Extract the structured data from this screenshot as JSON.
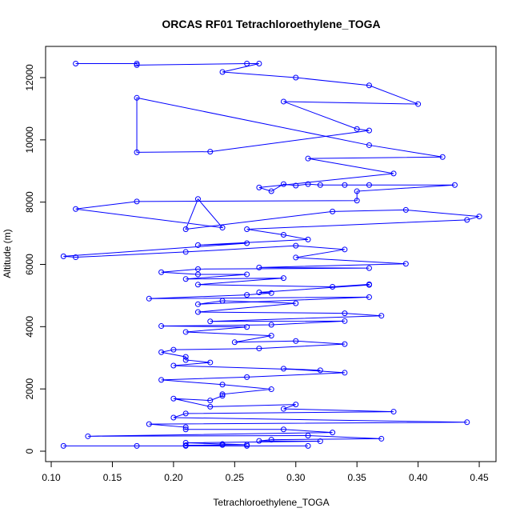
{
  "chart_data": {
    "type": "line",
    "title": "ORCAS RF01 Tetrachloroethylene_TOGA",
    "x_label": "Tetrachloroethylene_TOGA",
    "y_label": "Altitude (m)",
    "color": "#0000ff",
    "marker": "circle",
    "x": [
      0.12,
      0.17,
      0.17,
      0.26,
      0.27,
      0.24,
      0.3,
      0.36,
      0.4,
      0.29,
      0.35,
      0.36,
      0.23,
      0.17,
      0.17,
      0.36,
      0.42,
      0.31,
      0.38,
      0.27,
      0.28,
      0.29,
      0.3,
      0.31,
      0.32,
      0.34,
      0.36,
      0.43,
      0.35,
      0.35,
      0.17,
      0.12,
      0.24,
      0.22,
      0.21,
      0.33,
      0.39,
      0.45,
      0.44,
      0.26,
      0.29,
      0.31,
      0.22,
      0.26,
      0.11,
      0.12,
      0.21,
      0.3,
      0.34,
      0.3,
      0.39,
      0.27,
      0.36,
      0.22,
      0.19,
      0.22,
      0.26,
      0.21,
      0.29,
      0.22,
      0.33,
      0.36,
      0.36,
      0.27,
      0.28,
      0.26,
      0.18,
      0.36,
      0.22,
      0.24,
      0.3,
      0.22,
      0.34,
      0.37,
      0.23,
      0.34,
      0.28,
      0.19,
      0.26,
      0.21,
      0.28,
      0.25,
      0.3,
      0.34,
      0.27,
      0.2,
      0.19,
      0.21,
      0.21,
      0.23,
      0.2,
      0.32,
      0.29,
      0.34,
      0.26,
      0.19,
      0.24,
      0.28,
      0.24,
      0.24,
      0.23,
      0.2,
      0.23,
      0.3,
      0.29,
      0.38,
      0.21,
      0.2,
      0.44,
      0.18,
      0.21,
      0.21,
      0.29,
      0.33,
      0.13,
      0.31,
      0.37,
      0.28,
      0.27,
      0.32,
      0.21,
      0.24,
      0.26,
      0.21,
      0.24,
      0.21,
      0.11,
      0.17,
      0.26,
      0.31
    ],
    "values": [
      12450,
      12450,
      12400,
      12450,
      12450,
      12180,
      12000,
      11750,
      11150,
      11230,
      10350,
      10300,
      9620,
      9600,
      11350,
      9830,
      9450,
      9400,
      8920,
      8470,
      8350,
      8580,
      8530,
      8580,
      8550,
      8550,
      8550,
      8550,
      8350,
      8050,
      8020,
      7780,
      7180,
      8100,
      7130,
      7700,
      7750,
      7540,
      7430,
      7130,
      6950,
      6800,
      6620,
      6680,
      6260,
      6230,
      6400,
      6600,
      6480,
      6220,
      6020,
      5900,
      5880,
      5850,
      5750,
      5680,
      5680,
      5530,
      5560,
      5350,
      5280,
      5360,
      5340,
      5100,
      5080,
      5020,
      4900,
      4950,
      4720,
      4830,
      4750,
      4470,
      4430,
      4350,
      4170,
      4180,
      4060,
      4020,
      3990,
      3830,
      3710,
      3500,
      3540,
      3440,
      3300,
      3260,
      3180,
      3030,
      2930,
      2850,
      2750,
      2600,
      2650,
      2520,
      2380,
      2290,
      2140,
      1990,
      1830,
      1780,
      1630,
      1690,
      1430,
      1500,
      1360,
      1270,
      1210,
      1080,
      930,
      870,
      770,
      700,
      700,
      600,
      480,
      500,
      400,
      370,
      330,
      320,
      270,
      230,
      210,
      190,
      200,
      170,
      170,
      170,
      170,
      170
    ],
    "xlim": [
      0.0954,
      0.4637
    ],
    "ylim": [
      -334,
      13002
    ],
    "xticks": [
      {
        "value": 0.1,
        "label": "0.10"
      },
      0.15,
      {
        "value": 0.2,
        "label": "0.20"
      },
      0.25,
      {
        "value": 0.3,
        "label": "0.30"
      },
      0.35,
      {
        "value": 0.4,
        "label": "0.40"
      },
      0.45
    ],
    "yticks": [
      0,
      2000,
      4000,
      6000,
      8000,
      10000,
      12000
    ]
  }
}
